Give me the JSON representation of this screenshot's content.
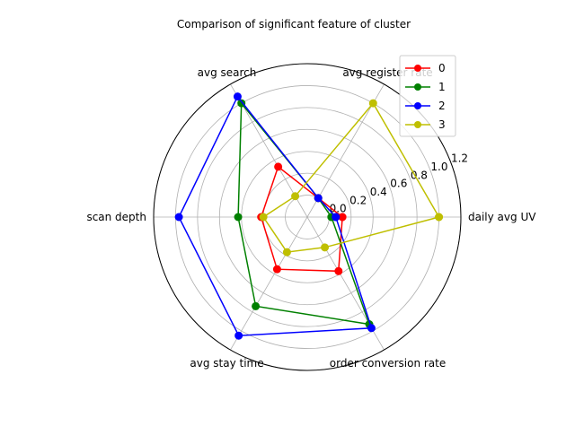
{
  "chart_data": {
    "type": "radar",
    "title": "Comparison of significant feature of cluster",
    "axes": [
      "daily avg UV",
      "avg register rate",
      "avg search",
      "scan depth",
      "avg stay time",
      "order conversion rate"
    ],
    "rlim": [
      -0.2,
      1.2
    ],
    "rticks": [
      "0.0",
      "0.2",
      "0.4",
      "0.6",
      "0.8",
      "1.0",
      "1.2"
    ],
    "rtick_values": [
      0.0,
      0.2,
      0.4,
      0.6,
      0.8,
      1.0,
      1.2
    ],
    "grid": true,
    "legend_position": "top-right",
    "series": [
      {
        "name": "0",
        "color": "#ff0000",
        "values": [
          0.12,
          0.0,
          0.33,
          0.22,
          0.35,
          0.37
        ]
      },
      {
        "name": "1",
        "color": "#008000",
        "values": [
          0.02,
          0.0,
          1.0,
          0.43,
          0.74,
          0.93
        ]
      },
      {
        "name": "2",
        "color": "#0000ff",
        "values": [
          0.06,
          0.0,
          1.07,
          0.97,
          1.05,
          0.97
        ]
      },
      {
        "name": "3",
        "color": "#bfbf00",
        "values": [
          1.0,
          1.0,
          0.02,
          0.2,
          0.17,
          0.12
        ]
      }
    ]
  }
}
